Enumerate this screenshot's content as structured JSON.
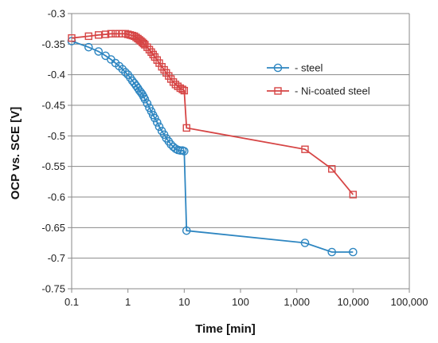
{
  "chart_data": {
    "type": "scatter",
    "title": "",
    "xlabel": "Time [min]",
    "ylabel": "OCP vs. SCE  [V]",
    "x_scale": "log",
    "xlim": [
      0.1,
      100000
    ],
    "ylim": [
      -0.75,
      -0.3
    ],
    "x_ticks": [
      0.1,
      1,
      10,
      100,
      1000,
      10000,
      100000
    ],
    "x_tick_labels": [
      "0.1",
      "1",
      "10",
      "100",
      "1,000",
      "10,000",
      "100,000"
    ],
    "y_ticks": [
      -0.3,
      -0.35,
      -0.4,
      -0.45,
      -0.5,
      -0.55,
      -0.6,
      -0.65,
      -0.7,
      -0.75
    ],
    "y_tick_labels": [
      "-0.3",
      "-0.35",
      "-0.4",
      "-0.45",
      "-0.5",
      "-0.55",
      "-0.6",
      "-0.65",
      "-0.7",
      "-0.75"
    ],
    "grid": "horizontal",
    "legend_position": "right",
    "series": [
      {
        "name": "- steel",
        "marker": "circle",
        "color": "#2E86C1",
        "points": [
          [
            0.1,
            -0.345
          ],
          [
            0.2,
            -0.355
          ],
          [
            0.3,
            -0.362
          ],
          [
            0.4,
            -0.369
          ],
          [
            0.5,
            -0.375
          ],
          [
            0.6,
            -0.381
          ],
          [
            0.7,
            -0.386
          ],
          [
            0.8,
            -0.391
          ],
          [
            0.9,
            -0.396
          ],
          [
            1.0,
            -0.4
          ],
          [
            1.1,
            -0.405
          ],
          [
            1.2,
            -0.41
          ],
          [
            1.3,
            -0.414
          ],
          [
            1.4,
            -0.418
          ],
          [
            1.5,
            -0.422
          ],
          [
            1.6,
            -0.426
          ],
          [
            1.7,
            -0.429
          ],
          [
            1.8,
            -0.432
          ],
          [
            1.9,
            -0.436
          ],
          [
            2.0,
            -0.44
          ],
          [
            2.2,
            -0.447
          ],
          [
            2.4,
            -0.454
          ],
          [
            2.6,
            -0.46
          ],
          [
            2.8,
            -0.466
          ],
          [
            3.0,
            -0.471
          ],
          [
            3.3,
            -0.478
          ],
          [
            3.6,
            -0.485
          ],
          [
            4.0,
            -0.492
          ],
          [
            4.4,
            -0.498
          ],
          [
            4.8,
            -0.504
          ],
          [
            5.3,
            -0.509
          ],
          [
            5.8,
            -0.514
          ],
          [
            6.4,
            -0.518
          ],
          [
            7.0,
            -0.521
          ],
          [
            7.7,
            -0.523
          ],
          [
            8.5,
            -0.524
          ],
          [
            9.3,
            -0.524
          ],
          [
            10.0,
            -0.525
          ],
          [
            11,
            -0.655
          ],
          [
            1400,
            -0.675
          ],
          [
            4200,
            -0.69
          ],
          [
            10000,
            -0.69
          ]
        ]
      },
      {
        "name": "- Ni-coated steel",
        "marker": "square",
        "color": "#D64545",
        "points": [
          [
            0.1,
            -0.34
          ],
          [
            0.2,
            -0.337
          ],
          [
            0.3,
            -0.335
          ],
          [
            0.4,
            -0.334
          ],
          [
            0.5,
            -0.333
          ],
          [
            0.6,
            -0.333
          ],
          [
            0.7,
            -0.333
          ],
          [
            0.8,
            -0.333
          ],
          [
            0.9,
            -0.333
          ],
          [
            1.0,
            -0.334
          ],
          [
            1.1,
            -0.335
          ],
          [
            1.2,
            -0.336
          ],
          [
            1.3,
            -0.337
          ],
          [
            1.4,
            -0.339
          ],
          [
            1.5,
            -0.341
          ],
          [
            1.6,
            -0.343
          ],
          [
            1.7,
            -0.345
          ],
          [
            1.8,
            -0.347
          ],
          [
            1.9,
            -0.349
          ],
          [
            2.0,
            -0.351
          ],
          [
            2.2,
            -0.355
          ],
          [
            2.4,
            -0.359
          ],
          [
            2.6,
            -0.363
          ],
          [
            2.8,
            -0.367
          ],
          [
            3.0,
            -0.371
          ],
          [
            3.3,
            -0.376
          ],
          [
            3.6,
            -0.381
          ],
          [
            4.0,
            -0.387
          ],
          [
            4.4,
            -0.392
          ],
          [
            4.8,
            -0.397
          ],
          [
            5.3,
            -0.402
          ],
          [
            5.8,
            -0.407
          ],
          [
            6.4,
            -0.412
          ],
          [
            7.0,
            -0.416
          ],
          [
            7.7,
            -0.419
          ],
          [
            8.5,
            -0.422
          ],
          [
            9.3,
            -0.424
          ],
          [
            10.0,
            -0.426
          ],
          [
            11,
            -0.487
          ],
          [
            1400,
            -0.522
          ],
          [
            4200,
            -0.554
          ],
          [
            10000,
            -0.596
          ]
        ]
      }
    ]
  }
}
